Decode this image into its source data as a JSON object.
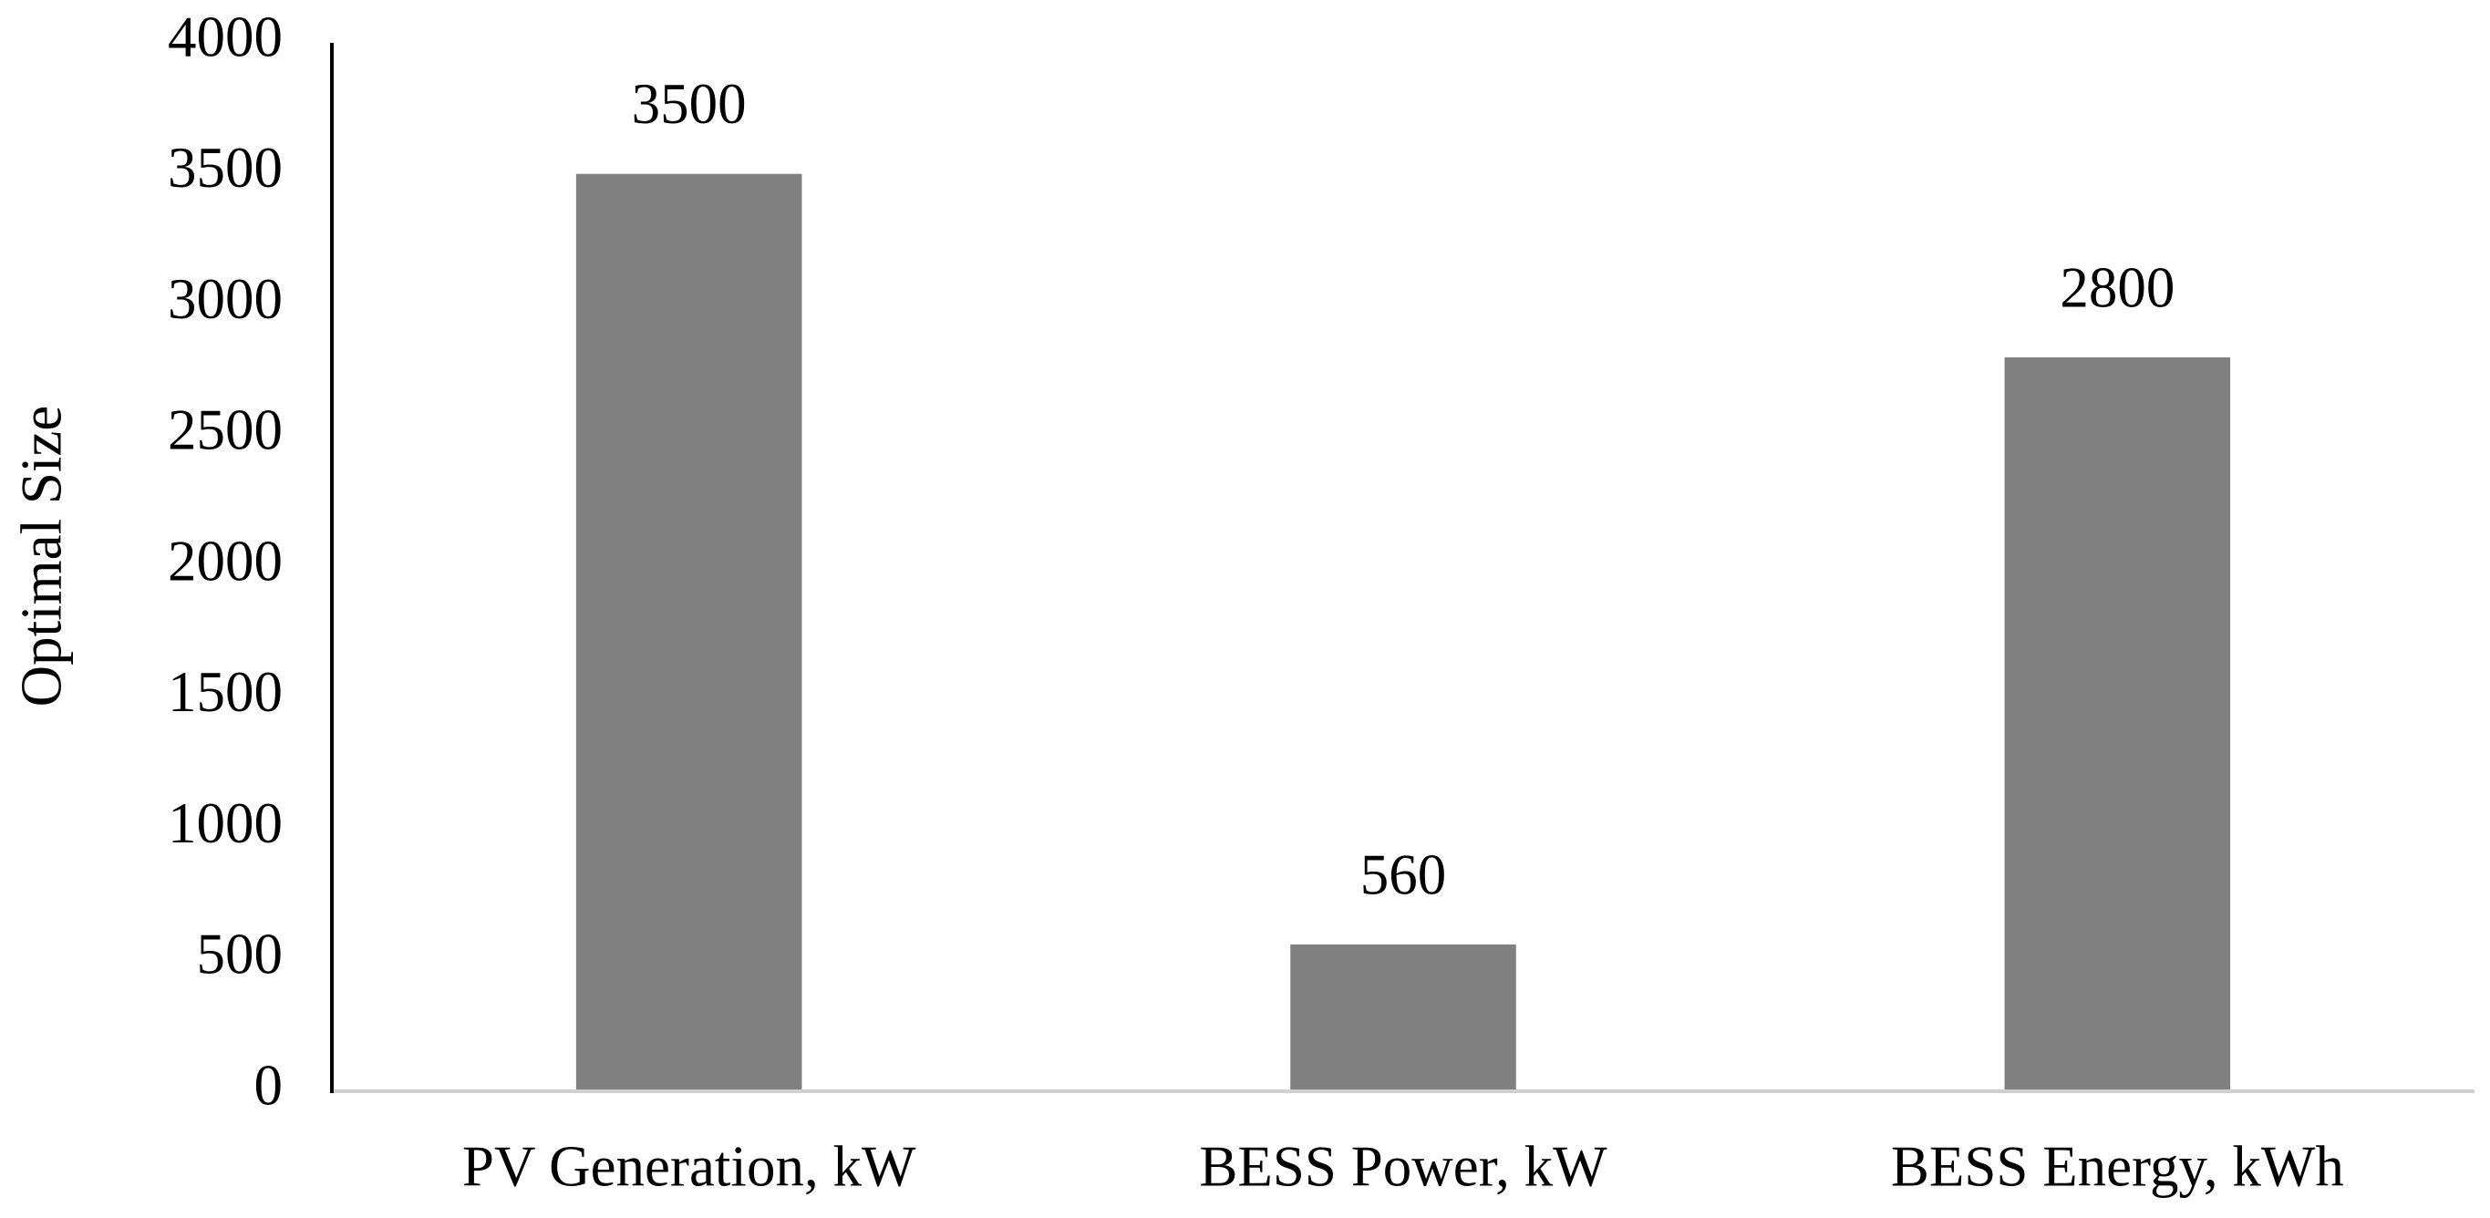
{
  "chart_data": {
    "type": "bar",
    "y_label": "Optimal Size",
    "categories": [
      "PV Generation, kW",
      "BESS Power, kW",
      "BESS Energy, kWh"
    ],
    "values": [
      3500,
      560,
      2800
    ],
    "color": "#808080",
    "ylim": [
      0,
      4000
    ],
    "yticks": [
      0,
      500,
      1000,
      1500,
      2000,
      2500,
      3000,
      3500,
      4000
    ],
    "grid": false
  }
}
